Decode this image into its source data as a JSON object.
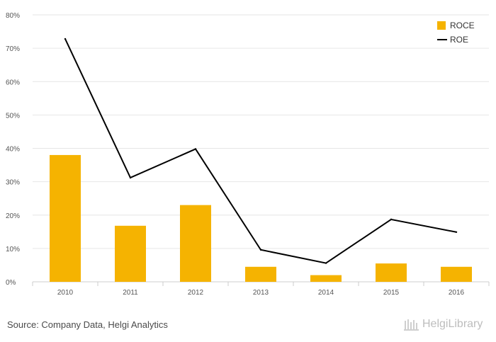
{
  "chart_data": {
    "type": "bar",
    "categories": [
      "2010",
      "2011",
      "2012",
      "2013",
      "2014",
      "2015",
      "2016"
    ],
    "series": [
      {
        "name": "ROCE",
        "kind": "bar",
        "color": "#f5b301",
        "values": [
          38.0,
          16.8,
          23.0,
          4.5,
          2.0,
          5.5,
          4.5
        ]
      },
      {
        "name": "ROE",
        "kind": "line",
        "color": "#000000",
        "values": [
          72.8,
          31.2,
          39.8,
          9.6,
          5.6,
          18.7,
          14.9
        ]
      }
    ],
    "yticks": [
      "0%",
      "10%",
      "20%",
      "30%",
      "40%",
      "50%",
      "60%",
      "70%",
      "80%"
    ],
    "ylim": [
      0,
      80
    ],
    "grid": true,
    "legend": "top-right"
  },
  "footer": {
    "source": "Source: Company Data, Helgi Analytics",
    "brand": "HelgiLibrary"
  }
}
